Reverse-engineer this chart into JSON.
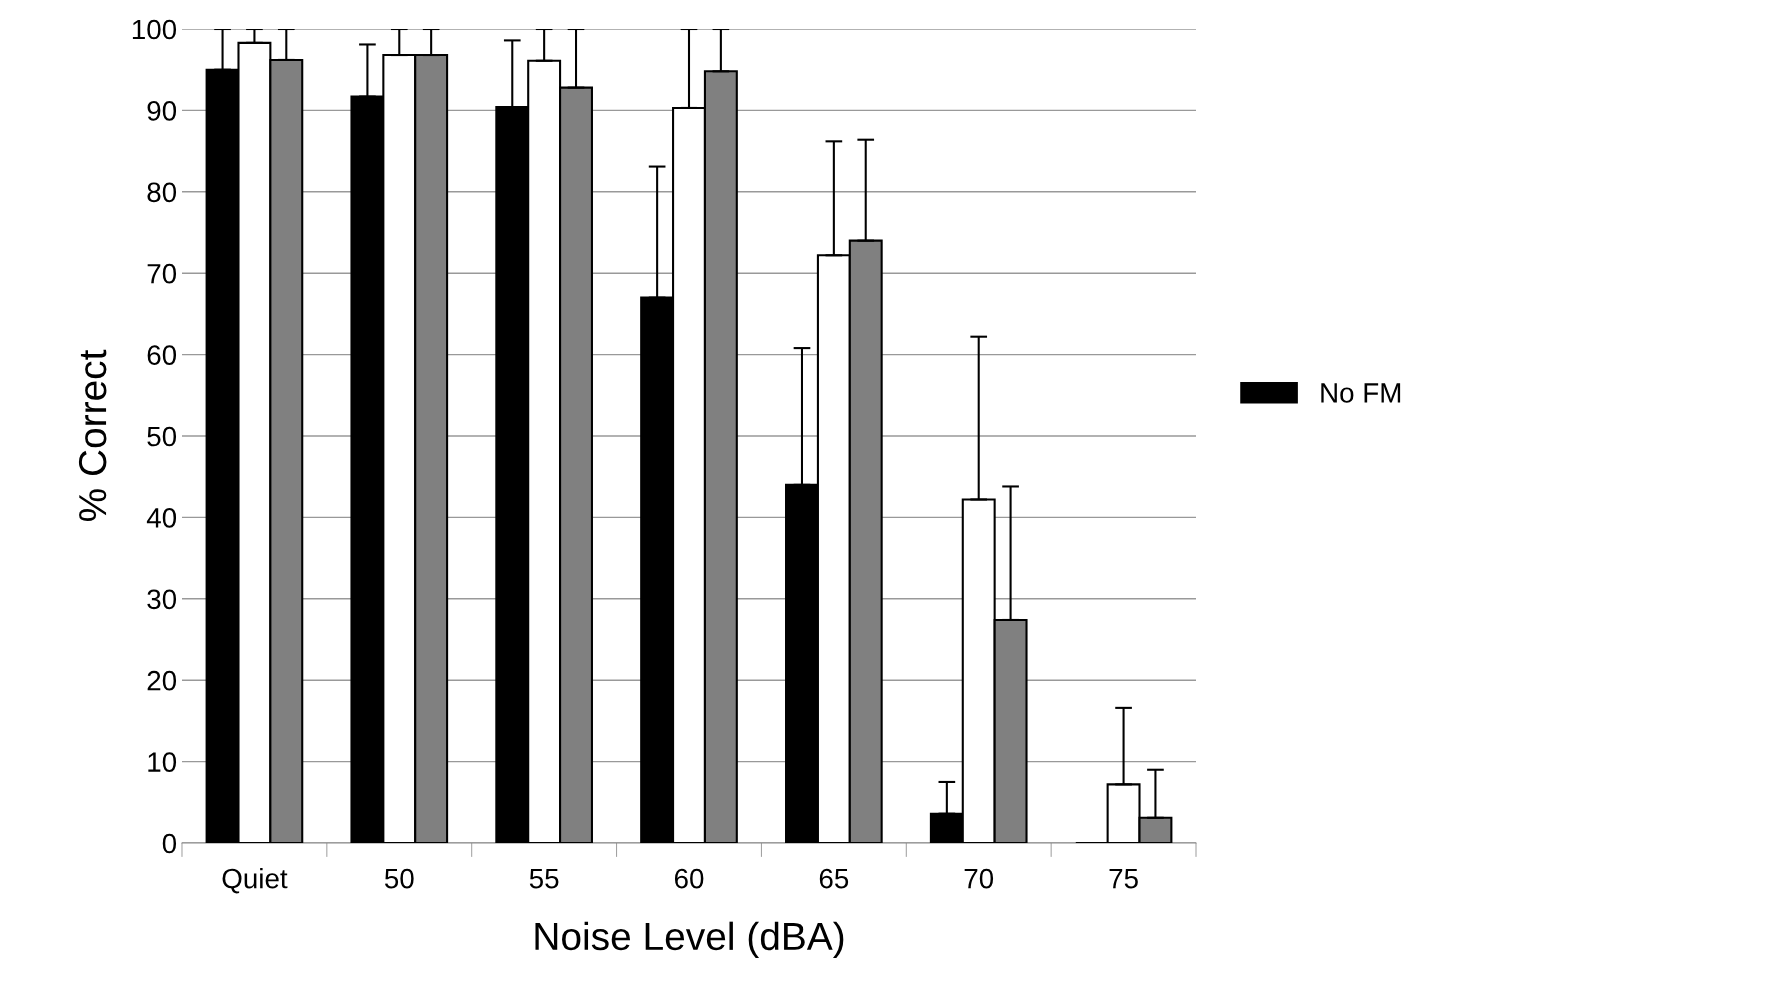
{
  "chart_data": {
    "type": "bar",
    "xlabel": "Noise Level (dBA)",
    "ylabel": "% Correct",
    "categories": [
      "Quiet",
      "50",
      "55",
      "60",
      "65",
      "70",
      "75"
    ],
    "ylim": [
      0,
      100
    ],
    "yticks": [
      0,
      10,
      20,
      30,
      40,
      50,
      60,
      70,
      80,
      90,
      100
    ],
    "grid": "y",
    "legend": "right",
    "series": [
      {
        "name": "No FM",
        "color": "#000000",
        "values": [
          95,
          91.7,
          90.4,
          67,
          44,
          3.6,
          0
        ],
        "errors": [
          [
            95,
            100
          ],
          [
            91.7,
            98.1
          ],
          [
            90.4,
            98.6
          ],
          [
            67,
            83.1
          ],
          [
            44,
            60.8
          ],
          [
            3.6,
            7.5
          ],
          null
        ]
      },
      {
        "color": "#ffffff",
        "values": [
          98.3,
          96.8,
          96.1,
          90.3,
          72.2,
          42.2,
          7.2
        ],
        "errors": [
          [
            98.3,
            100
          ],
          [
            96.8,
            100
          ],
          [
            96.1,
            100
          ],
          [
            90.3,
            100
          ],
          [
            72.2,
            86.2
          ],
          [
            42.2,
            62.2
          ],
          [
            7.2,
            16.6
          ]
        ]
      },
      {
        "color": "#808080",
        "values": [
          96.2,
          96.8,
          92.8,
          94.8,
          74,
          27.4,
          3.1
        ],
        "errors": [
          [
            96.2,
            100
          ],
          [
            96.8,
            100
          ],
          [
            92.8,
            100
          ],
          [
            94.8,
            100
          ],
          [
            74,
            86.4
          ],
          [
            27.4,
            43.8
          ],
          [
            3.1,
            9.0
          ]
        ]
      }
    ]
  }
}
